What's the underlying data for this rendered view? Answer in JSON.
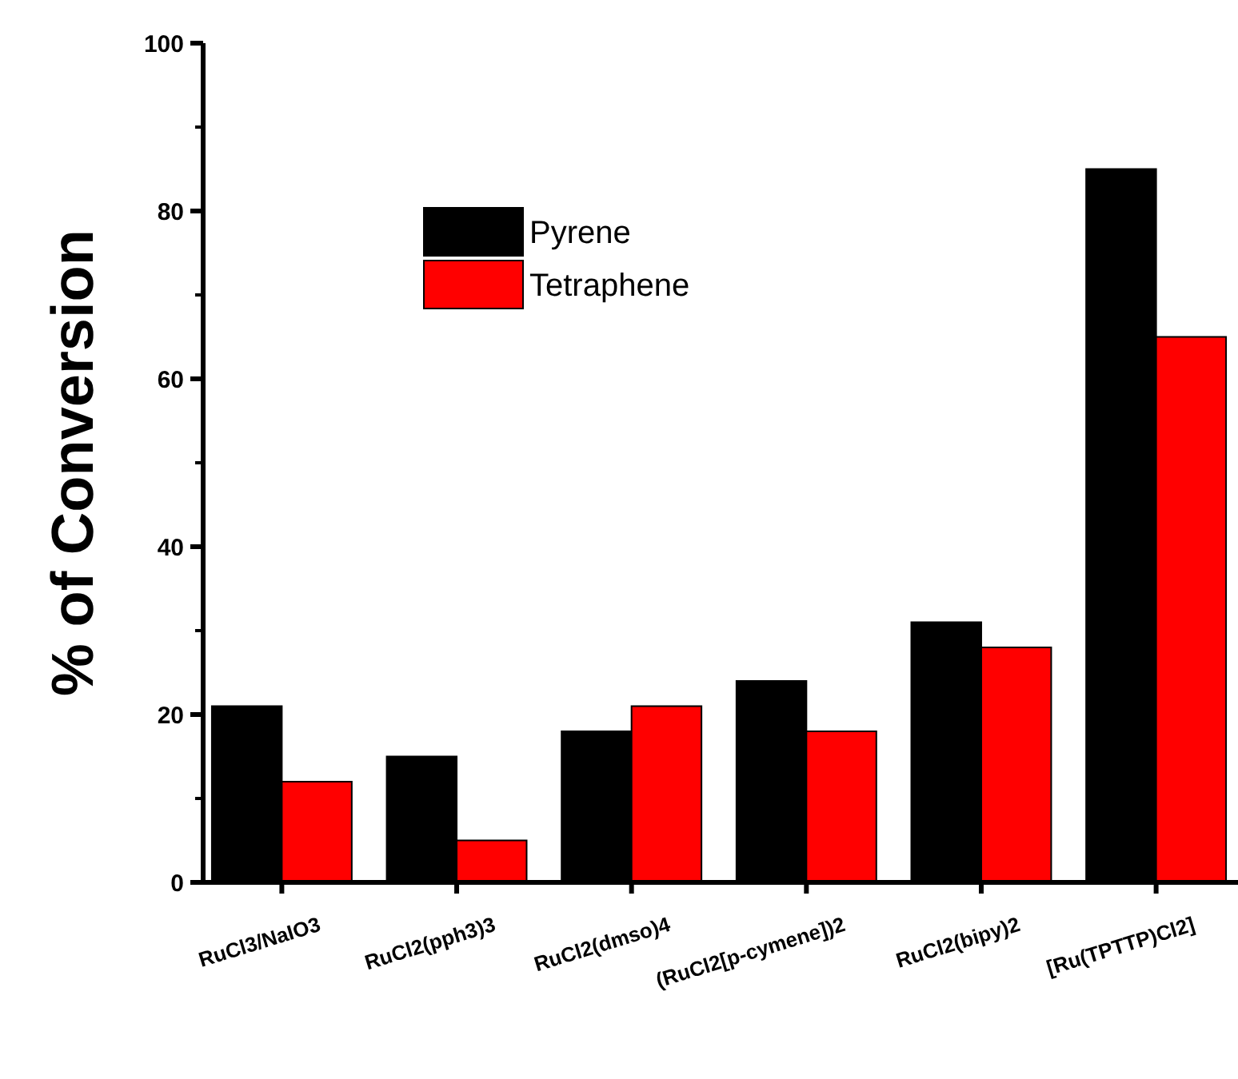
{
  "chart_data": {
    "type": "bar",
    "ylabel": "% of Conversion",
    "categories": [
      "RuCl3/NaIO3",
      "RuCl2(pph3)3",
      "RuCl2(dmso)4",
      "(RuCl2[p-cymene])2",
      "RuCl2(bipy)2",
      "[Ru(TPTTP)Cl2]"
    ],
    "series": [
      {
        "name": "Pyrene",
        "color": "#000000",
        "values": [
          21,
          15,
          18,
          24,
          31,
          85
        ]
      },
      {
        "name": "Tetraphene",
        "color": "#ff0000",
        "values": [
          12,
          5,
          21,
          18,
          28,
          65
        ]
      }
    ],
    "ylim": [
      0,
      100
    ],
    "yticks": [
      0,
      20,
      40,
      60,
      80,
      100
    ],
    "legend": "top left"
  }
}
